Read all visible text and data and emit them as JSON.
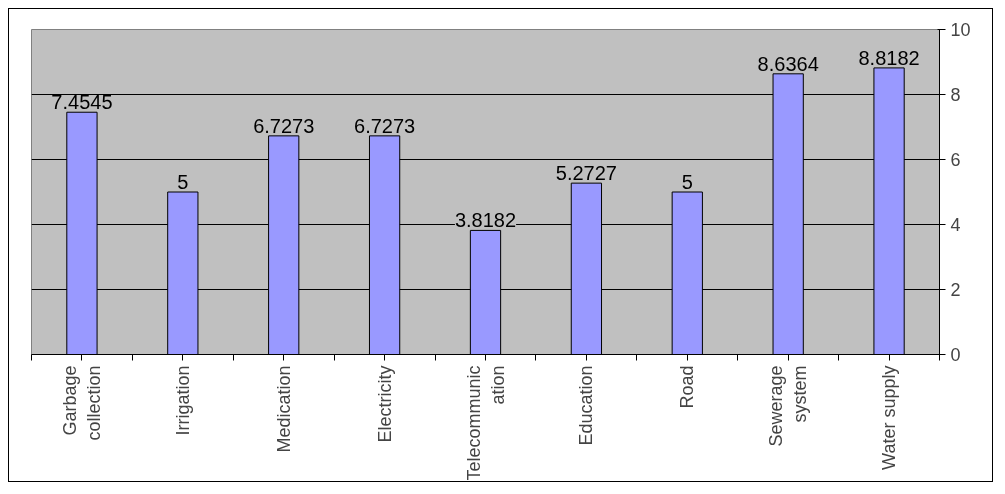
{
  "chart_data": {
    "type": "bar",
    "categories": [
      "Garbage\ncollection",
      "Irrigation",
      "Medication",
      "Electricity",
      "Telecommunic\nation",
      "Education",
      "Road",
      "Sewerage\nsystem",
      "Water supply"
    ],
    "values": [
      7.4545,
      5,
      6.7273,
      6.7273,
      3.8182,
      5.2727,
      5,
      8.6364,
      8.8182
    ],
    "color": "#9999ff",
    "ylim": [
      0,
      10
    ],
    "yticks": [
      0,
      2,
      4,
      6,
      8,
      10
    ],
    "grid": "y",
    "data_labels": true
  }
}
